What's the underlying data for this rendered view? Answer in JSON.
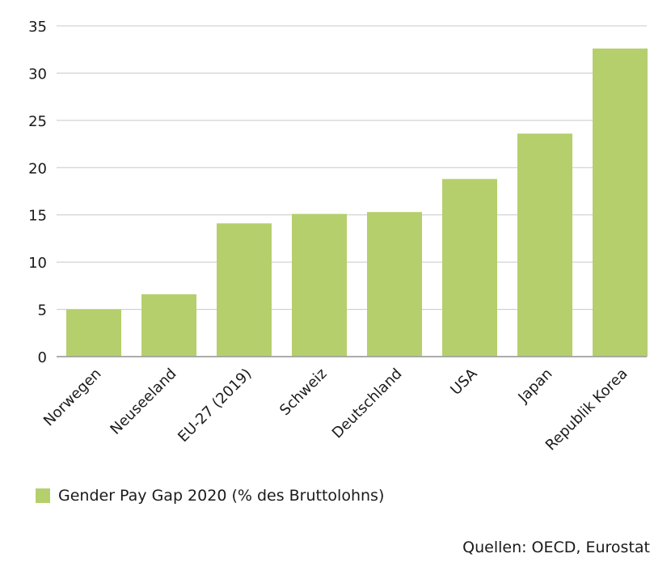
{
  "colors": {
    "bar": "#b5cf6d",
    "grid": "#c8c8c8",
    "axis": "#a0a0a0",
    "text": "#1a1a1a"
  },
  "chart_data": {
    "type": "bar",
    "categories": [
      "Norwegen",
      "Neuseeland",
      "EU-27 (2019)",
      "Schweiz",
      "Deutschland",
      "USA",
      "Japan",
      "Republik Korea"
    ],
    "values": [
      5.0,
      6.6,
      14.1,
      15.1,
      15.3,
      18.8,
      23.6,
      32.6
    ],
    "series": [
      {
        "name": "Gender Pay Gap 2020 (% des Bruttolohns)",
        "values": [
          5.0,
          6.6,
          14.1,
          15.1,
          15.3,
          18.8,
          23.6,
          32.6
        ]
      }
    ],
    "ylim": [
      0,
      35
    ],
    "yticks": [
      0,
      5,
      10,
      15,
      20,
      25,
      30,
      35
    ],
    "xlabel": "",
    "ylabel": "",
    "grid": true,
    "legend_position": "bottom-left"
  },
  "legend": {
    "label": "Gender Pay Gap 2020 (% des Bruttolohns)"
  },
  "source": "Quellen: OECD, Eurostat"
}
